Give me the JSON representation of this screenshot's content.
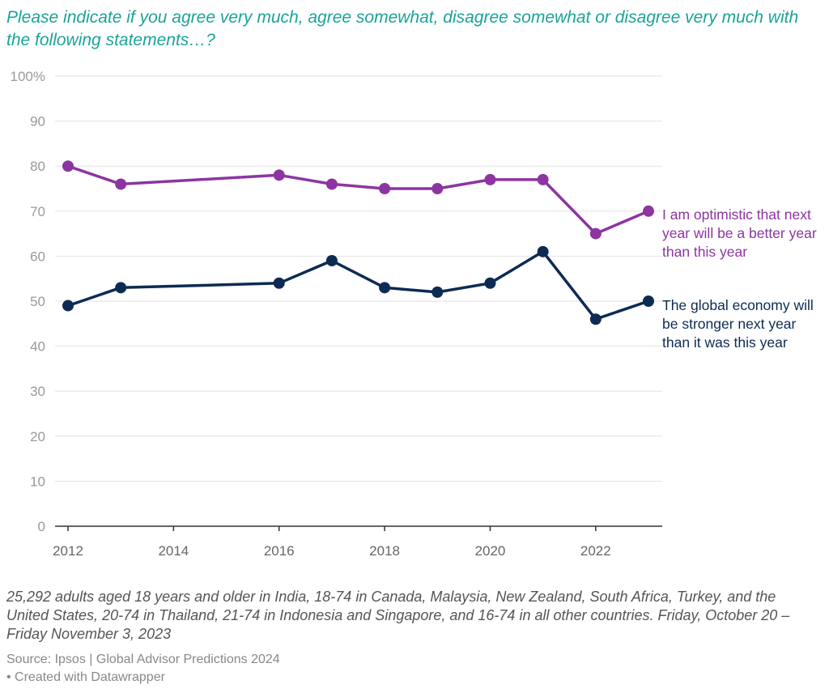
{
  "title": "Please indicate if you agree very much, agree somewhat, disagree somewhat or disagree very much with the following statements…?",
  "colors": {
    "title": "#1aa39a",
    "optimistic": "#8c35a1",
    "economy": "#0d2b52",
    "grid": "#e2e2e2",
    "axis": "#333333"
  },
  "chart_data": {
    "type": "line",
    "x": [
      2012,
      2013,
      2016,
      2017,
      2018,
      2019,
      2020,
      2021,
      2022,
      2023
    ],
    "xlim": [
      2012,
      2023
    ],
    "x_ticks": [
      "2012",
      "2014",
      "2016",
      "2018",
      "2020",
      "2022"
    ],
    "ylim": [
      0,
      100
    ],
    "y_ticks": [
      "0",
      "10",
      "20",
      "30",
      "40",
      "50",
      "60",
      "70",
      "80",
      "90",
      "100%"
    ],
    "grid": true,
    "legend": "direct labels at right end of lines",
    "series": [
      {
        "name": "I am optimistic that next year will be a better year than this year",
        "color": "#8c35a1",
        "values": [
          80,
          76,
          78,
          76,
          75,
          75,
          77,
          77,
          65,
          70
        ]
      },
      {
        "name": "The global economy will be stronger next year than it was this year",
        "color": "#0d2b52",
        "values": [
          49,
          53,
          54,
          59,
          53,
          52,
          54,
          61,
          46,
          50
        ]
      }
    ]
  },
  "notes": "25,292 adults aged 18 years and older in India, 18-74 in Canada, Malaysia, New Zealand, South Africa, Turkey, and the United States, 20-74 in Thailand, 21-74 in Indonesia and Singapore, and 16-74 in all other countries. Friday, October 20 – Friday November 3, 2023",
  "source": "Source: Ipsos | Global Advisor Predictions 2024",
  "credit": " • Created with Datawrapper"
}
